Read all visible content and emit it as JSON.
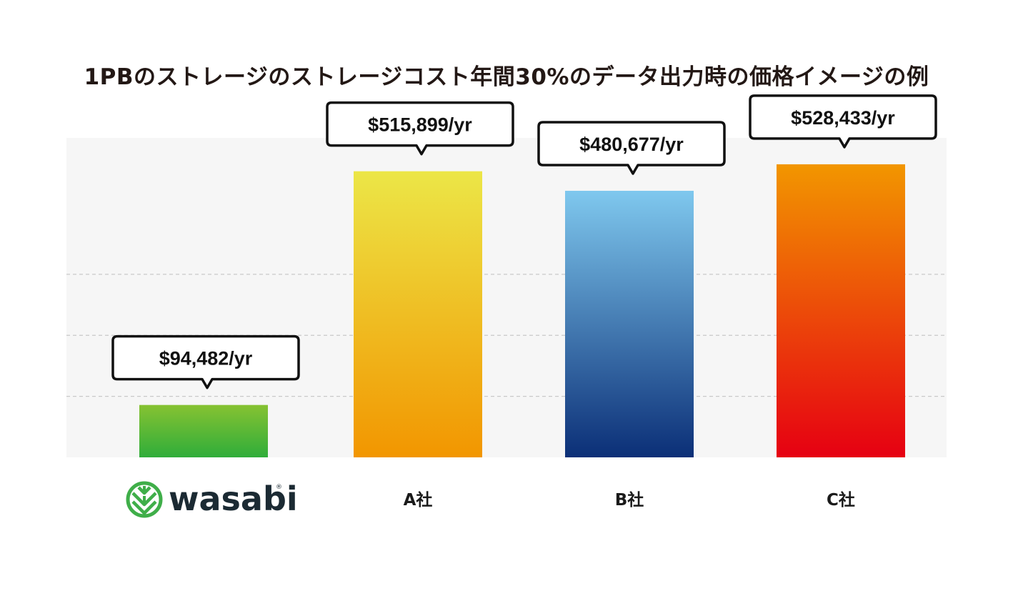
{
  "chart_data": {
    "type": "bar",
    "title": "1PBのストレージのストレージコスト年間30%のデータ出力時の価格イメージの例",
    "categories": [
      "wasabi",
      "A社",
      "B社",
      "C社"
    ],
    "values": [
      94482,
      515899,
      480677,
      528433
    ],
    "data_labels": [
      "$94,482/yr",
      "$515,899/yr",
      "$480,677/yr",
      "$528,433/yr"
    ],
    "ylim": [
      0,
      576000
    ],
    "grid": true,
    "colors": [
      [
        "#86c232",
        "#2fad3a"
      ],
      [
        "#ece647",
        "#f29600"
      ],
      [
        "#7fc8ee",
        "#0b2f77"
      ],
      [
        "#f29600",
        "#e60012"
      ]
    ]
  },
  "logo": {
    "word": "wasabi",
    "mark": "®",
    "color": "#3fae49"
  }
}
